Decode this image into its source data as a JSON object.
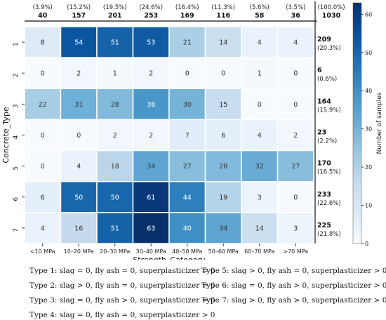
{
  "chart_data": {
    "type": "heatmap",
    "xlabel": "Strength_Category",
    "ylabel": "Concrete_Type",
    "colorbar_label": "Number of samples",
    "colorbar_range": [
      0,
      63
    ],
    "colorbar_ticks": [
      "0",
      "10",
      "20",
      "30",
      "40",
      "50",
      "60"
    ],
    "colormap": [
      "#f7fbff",
      "#deebf7",
      "#c6dbef",
      "#9ecae1",
      "#6baed6",
      "#4292c6",
      "#2171b5",
      "#08519c",
      "#08306b"
    ],
    "x_categories": [
      "<10 MPa",
      "10–20 MPa",
      "20–30 MPa",
      "30–40 MPa",
      "40–50 MPa",
      "50–60 MPa",
      "60–70 MPa",
      ">70 MPa"
    ],
    "y_categories": [
      "1",
      "2",
      "3",
      "4",
      "5",
      "6",
      "7"
    ],
    "values": [
      [
        8,
        54,
        51,
        53,
        21,
        14,
        4,
        4
      ],
      [
        0,
        2,
        1,
        2,
        0,
        0,
        1,
        0
      ],
      [
        22,
        31,
        28,
        38,
        30,
        15,
        0,
        0
      ],
      [
        0,
        0,
        2,
        2,
        7,
        6,
        4,
        2
      ],
      [
        0,
        4,
        18,
        34,
        27,
        28,
        32,
        27
      ],
      [
        6,
        50,
        50,
        61,
        44,
        19,
        3,
        0
      ],
      [
        4,
        16,
        51,
        63,
        40,
        34,
        14,
        3
      ]
    ],
    "column_totals": [
      "40",
      "157",
      "201",
      "253",
      "169",
      "116",
      "58",
      "36"
    ],
    "column_percents": [
      "(3.9%)",
      "(15.2%)",
      "(19.5%)",
      "(24.6%)",
      "(16.4%)",
      "(11.3%)",
      "(5.6%)",
      "(3.5%)"
    ],
    "grand_total": "1030",
    "grand_percent": "(100.0%)",
    "row_totals": [
      "209",
      "6",
      "164",
      "23",
      "170",
      "233",
      "225"
    ],
    "row_percents": [
      "(20.3%)",
      "(0.6%)",
      "(15.9%)",
      "(2.2%)",
      "(16.5%)",
      "(22.6%)",
      "(21.8%)"
    ]
  },
  "type_legend": [
    "Type 1: slag = 0, fly ash = 0, superplasticizer = 0",
    "Type 2: slag > 0, fly ash = 0, superplasticizer = 0",
    "Type 3: slag = 0, fly ash > 0, superplasticizer = 0",
    "Type 4: slag = 0, fly ash = 0, superplasticizer > 0",
    "Type 5: slag > 0, fly ash = 0, superplasticizer > 0",
    "Type 6: slag = 0, fly ash > 0, superplasticizer > 0",
    "Type 7: slag > 0, fly ash > 0, superplasticizer > 0"
  ]
}
